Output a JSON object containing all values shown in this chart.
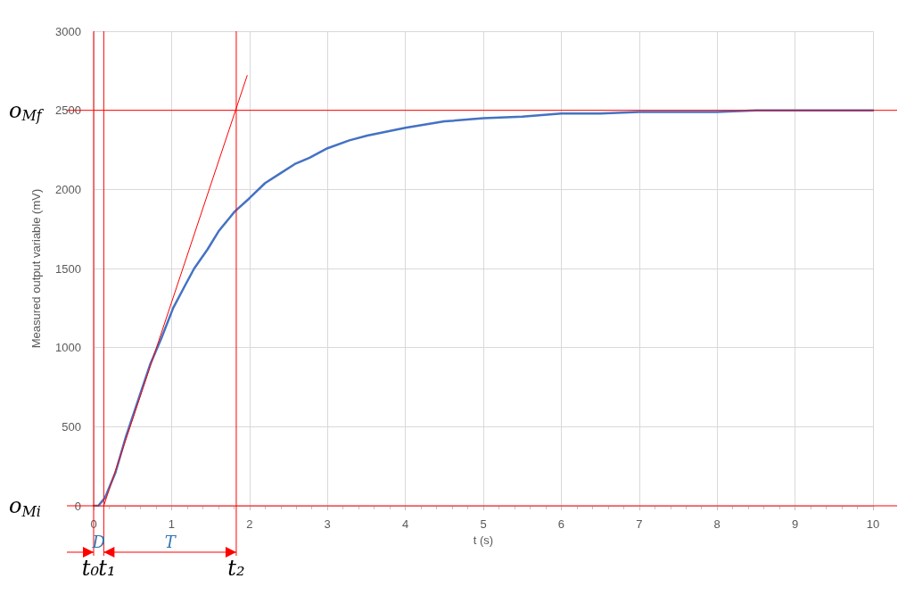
{
  "chart_data": {
    "type": "line",
    "xlabel": "t (s)",
    "ylabel": "Measured output variable (mV)",
    "xlim": [
      0,
      10
    ],
    "xticks": [
      0,
      1,
      2,
      3,
      4,
      5,
      6,
      7,
      8,
      9,
      10
    ],
    "ylim": [
      0,
      3000
    ],
    "yticks": [
      0,
      500,
      1000,
      1500,
      2000,
      2500,
      3000
    ],
    "grid": true,
    "marker": "none",
    "line_style": "solid",
    "series": [
      {
        "color": "#4472c4",
        "x": [
          0,
          0.06,
          0.145,
          0.28,
          0.41,
          0.6,
          0.73,
          0.87,
          1.02,
          1.17,
          1.29,
          1.46,
          1.61,
          1.81,
          1.99,
          2.2,
          2.39,
          2.58,
          2.77,
          3.0,
          3.28,
          3.51,
          4,
          4.5,
          5,
          5.5,
          6,
          6.5,
          7,
          7.5,
          8,
          8.5,
          9,
          9.5,
          10
        ],
        "values": [
          0,
          0,
          50,
          210,
          430,
          710,
          900,
          1060,
          1250,
          1390,
          1500,
          1620,
          1740,
          1860,
          1940,
          2040,
          2100,
          2160,
          2200,
          2260,
          2310,
          2340,
          2390,
          2430,
          2450,
          2460,
          2480,
          2480,
          2490,
          2490,
          2490,
          2500,
          2500,
          2500,
          2500
        ]
      },
      {
        "color": "#ff0000",
        "x": [
          0.13,
          1.97
        ],
        "values": [
          0,
          2720
        ]
      }
    ],
    "ref_lines": [
      {
        "axis": "y",
        "value": 2500,
        "label": "o$_{Mf}$",
        "color": "#ff0000"
      },
      {
        "axis": "y",
        "value": 0,
        "label": "o$_{Mi}$",
        "color": "#ff0000"
      },
      {
        "axis": "x",
        "value": 0,
        "label": "t₀",
        "color": "#ff0000"
      },
      {
        "axis": "x",
        "value": 0.13,
        "label": "t₁",
        "color": "#ff0000"
      },
      {
        "axis": "x",
        "value": 1.83,
        "label": "t₂",
        "color": "#ff0000"
      }
    ],
    "annotations": [
      "D",
      "T"
    ]
  }
}
